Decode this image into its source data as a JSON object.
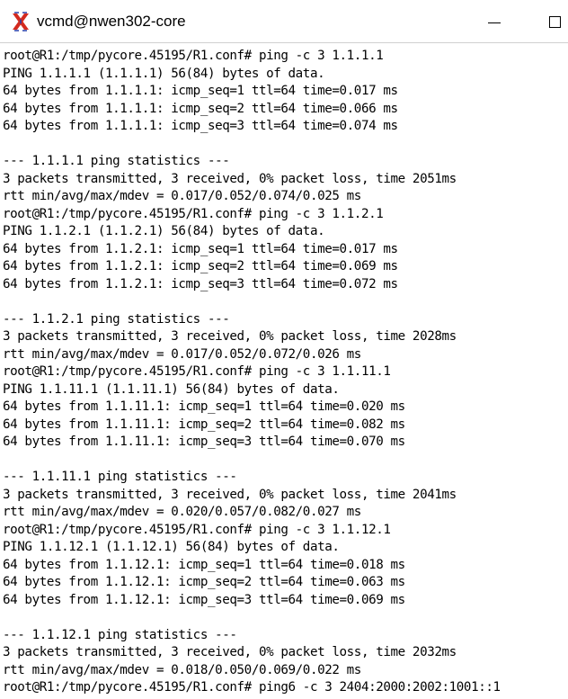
{
  "window": {
    "title": "vcmd@nwen302-core",
    "icon": "x-app-icon",
    "buttons": [
      "minimize",
      "maximize"
    ]
  },
  "terminal": {
    "lines": [
      "root@R1:/tmp/pycore.45195/R1.conf# ping -c 3 1.1.1.1",
      "PING 1.1.1.1 (1.1.1.1) 56(84) bytes of data.",
      "64 bytes from 1.1.1.1: icmp_seq=1 ttl=64 time=0.017 ms",
      "64 bytes from 1.1.1.1: icmp_seq=2 ttl=64 time=0.066 ms",
      "64 bytes from 1.1.1.1: icmp_seq=3 ttl=64 time=0.074 ms",
      "",
      "--- 1.1.1.1 ping statistics ---",
      "3 packets transmitted, 3 received, 0% packet loss, time 2051ms",
      "rtt min/avg/max/mdev = 0.017/0.052/0.074/0.025 ms",
      "root@R1:/tmp/pycore.45195/R1.conf# ping -c 3 1.1.2.1",
      "PING 1.1.2.1 (1.1.2.1) 56(84) bytes of data.",
      "64 bytes from 1.1.2.1: icmp_seq=1 ttl=64 time=0.017 ms",
      "64 bytes from 1.1.2.1: icmp_seq=2 ttl=64 time=0.069 ms",
      "64 bytes from 1.1.2.1: icmp_seq=3 ttl=64 time=0.072 ms",
      "",
      "--- 1.1.2.1 ping statistics ---",
      "3 packets transmitted, 3 received, 0% packet loss, time 2028ms",
      "rtt min/avg/max/mdev = 0.017/0.052/0.072/0.026 ms",
      "root@R1:/tmp/pycore.45195/R1.conf# ping -c 3 1.1.11.1",
      "PING 1.1.11.1 (1.1.11.1) 56(84) bytes of data.",
      "64 bytes from 1.1.11.1: icmp_seq=1 ttl=64 time=0.020 ms",
      "64 bytes from 1.1.11.1: icmp_seq=2 ttl=64 time=0.082 ms",
      "64 bytes from 1.1.11.1: icmp_seq=3 ttl=64 time=0.070 ms",
      "",
      "--- 1.1.11.1 ping statistics ---",
      "3 packets transmitted, 3 received, 0% packet loss, time 2041ms",
      "rtt min/avg/max/mdev = 0.020/0.057/0.082/0.027 ms",
      "root@R1:/tmp/pycore.45195/R1.conf# ping -c 3 1.1.12.1",
      "PING 1.1.12.1 (1.1.12.1) 56(84) bytes of data.",
      "64 bytes from 1.1.12.1: icmp_seq=1 ttl=64 time=0.018 ms",
      "64 bytes from 1.1.12.1: icmp_seq=2 ttl=64 time=0.063 ms",
      "64 bytes from 1.1.12.1: icmp_seq=3 ttl=64 time=0.069 ms",
      "",
      "--- 1.1.12.1 ping statistics ---",
      "3 packets transmitted, 3 received, 0% packet loss, time 2032ms",
      "rtt min/avg/max/mdev = 0.018/0.050/0.069/0.022 ms",
      "root@R1:/tmp/pycore.45195/R1.conf# ping6 -c 3 2404:2000:2002:1001::1"
    ]
  },
  "colors": {
    "icon_red": "#d42a1e",
    "icon_blue": "#2a3fa8",
    "text": "#000000",
    "background": "#ffffff"
  }
}
